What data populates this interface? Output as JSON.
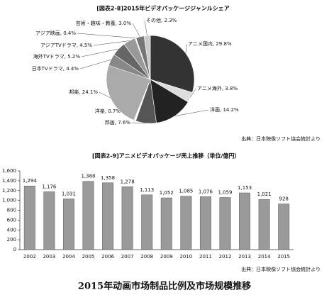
{
  "chart_data": [
    {
      "type": "pie",
      "title": "[図表2-8]2015年ビデオパッケージジャンルシェア",
      "source": "出典：日本映像ソフト協会統計より",
      "values": [
        29.8,
        3.8,
        14.2,
        7.6,
        0.7,
        24.1,
        4.4,
        5.2,
        4.5,
        0.4,
        3.0,
        2.3
      ],
      "value_labels": [
        "アニメ国内, 29.8%",
        "アニメ海外, 3.8%",
        "洋画, 14.2%",
        "邦画, 7.6%",
        "洋楽, 0.7%",
        "邦楽, 24.1%",
        "日本TVドラマ, 4.4%",
        "海外TVドラマ, 5.2%",
        "アジアTVドラマ, 4.5%",
        "アジア映画, 0.4%",
        "芸術・趣味・教養, 3.0%",
        "その他, 2.3%"
      ],
      "colors": [
        "#333333",
        "#dddddd",
        "#222222",
        "#555555",
        "#ffffff",
        "#aaaaaa",
        "#888888",
        "#666666",
        "#999999",
        "#eeeeee",
        "#777777",
        "#cccccc"
      ]
    },
    {
      "type": "bar",
      "title": "[図表2-9]アニメビデオパッケージ売上推移（単位/億円）",
      "source": "出典：日本映像ソフト協会統計より",
      "categories": [
        "2002",
        "2003",
        "2004",
        "2005",
        "2006",
        "2007",
        "2008",
        "2009",
        "2010",
        "2011",
        "2012",
        "2013",
        "2014",
        "2015"
      ],
      "values": [
        1294,
        1176,
        1031,
        1388,
        1358,
        1278,
        1113,
        1052,
        1085,
        1076,
        1059,
        1153,
        1021,
        928
      ],
      "value_labels": [
        "1,294",
        "1,176",
        "1,031",
        "1,388",
        "1,358",
        "1,278",
        "1,113",
        "1,052",
        "1,085",
        "1,076",
        "1,059",
        "1,153",
        "1,021",
        "928"
      ],
      "color": "#9a9a9a",
      "ylim": [
        0,
        1600
      ],
      "yticks": [
        0,
        200,
        400,
        600,
        800,
        {
          "value": 1000,
          "label": "1,000"
        },
        {
          "value": 1200,
          "label": "1,200"
        },
        {
          "value": 1400,
          "label": "1,400"
        },
        {
          "value": 1600,
          "label": "1,600"
        }
      ],
      "grid": false
    }
  ],
  "caption": "2015年动画市场制品比例及市场规模推移"
}
